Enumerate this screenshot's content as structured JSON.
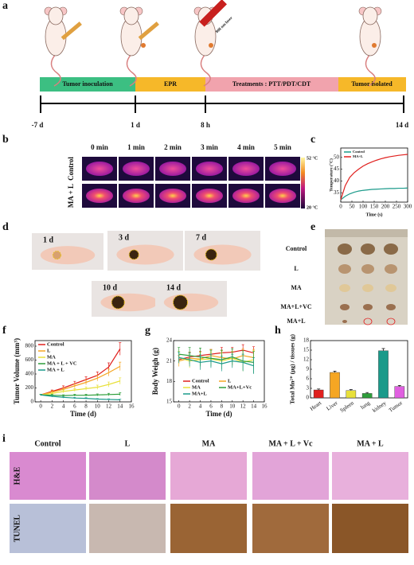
{
  "panel_labels": [
    "a",
    "b",
    "c",
    "d",
    "e",
    "f",
    "g",
    "h",
    "i"
  ],
  "timeline": {
    "phases": [
      "Tumor inoculation",
      "EPR",
      "Treatments : PTT/PDT/CDT",
      "Tumor isolated"
    ],
    "times": [
      "-7 d",
      "1 d",
      "8 h",
      "14 d"
    ],
    "laser_label": "808 nm laser"
  },
  "thermal": {
    "times": [
      "0 min",
      "1 min",
      "2 min",
      "3 min",
      "4 min",
      "5 min"
    ],
    "rows": [
      "Control",
      "MA + L"
    ],
    "scale_max": "52 °C",
    "scale_min": "20 °C"
  },
  "mice_photos": {
    "days": [
      "1 d",
      "3 d",
      "7 d",
      "10 d",
      "14 d"
    ]
  },
  "tumor_photos": {
    "groups": [
      "Control",
      "L",
      "MA",
      "MA+L+VC",
      "MA+L"
    ]
  },
  "histology": {
    "groups": [
      "Control",
      "L",
      "MA",
      "MA + L + Vc",
      "MA + L"
    ],
    "stains": [
      "H&E",
      "TUNEL"
    ]
  },
  "chart_data": [
    {
      "type": "line",
      "x_label": "Time (s)",
      "y_label": "Temperature (°C)",
      "x": [
        0,
        20,
        40,
        60,
        80,
        100,
        120,
        140,
        160,
        180,
        200,
        220,
        240,
        260,
        280,
        300
      ],
      "series": [
        {
          "name": "Control",
          "color": "#1a9a8a",
          "values": [
            32,
            33.5,
            34.5,
            35.2,
            35.7,
            36,
            36.2,
            36.4,
            36.5,
            36.6,
            36.7,
            36.8,
            36.8,
            36.9,
            36.9,
            37
          ]
        },
        {
          "name": "MA+L",
          "color": "#e0201e",
          "values": [
            32,
            38,
            41.5,
            43.5,
            45,
            46.3,
            47.3,
            48.1,
            48.8,
            49.4,
            49.9,
            50.3,
            50.6,
            50.9,
            51.1,
            51.3
          ]
        }
      ],
      "xlim": [
        0,
        300
      ],
      "xticks": [
        0,
        50,
        100,
        150,
        200,
        250,
        300
      ],
      "ylim": [
        31,
        54
      ],
      "yticks": [
        35,
        40,
        45,
        50
      ],
      "legend": "upper left",
      "legend_columns": 1
    },
    {
      "type": "line",
      "x_label": "Time (d)",
      "y_label": "Tumor Volume (mm³)",
      "x": [
        0,
        2,
        4,
        6,
        8,
        10,
        12,
        14
      ],
      "series": [
        {
          "name": "Control",
          "color": "#e0201e",
          "values": [
            100,
            150,
            200,
            260,
            320,
            380,
            500,
            760
          ],
          "errors": [
            10,
            20,
            30,
            35,
            40,
            50,
            60,
            90
          ]
        },
        {
          "name": "L",
          "color": "#f5a623",
          "values": [
            100,
            140,
            180,
            230,
            280,
            340,
            420,
            510
          ],
          "errors": [
            10,
            20,
            25,
            30,
            35,
            40,
            50,
            60
          ]
        },
        {
          "name": "MA",
          "color": "#e8e03a",
          "values": [
            100,
            120,
            150,
            170,
            190,
            210,
            250,
            300
          ],
          "errors": [
            10,
            15,
            20,
            20,
            25,
            30,
            35,
            45
          ]
        },
        {
          "name": "MA + L + VC",
          "color": "#2e9e3a",
          "values": [
            100,
            95,
            90,
            95,
            95,
            100,
            105,
            110
          ],
          "errors": [
            10,
            12,
            12,
            15,
            15,
            15,
            18,
            20
          ]
        },
        {
          "name": "MA + L",
          "color": "#1a9a8a",
          "values": [
            100,
            80,
            65,
            55,
            50,
            40,
            35,
            30
          ],
          "errors": [
            10,
            10,
            10,
            10,
            10,
            8,
            8,
            8
          ]
        }
      ],
      "xlim": [
        -1,
        16
      ],
      "xticks": [
        0,
        2,
        4,
        6,
        8,
        10,
        12,
        14,
        16
      ],
      "ylim": [
        0,
        880
      ],
      "yticks": [
        0,
        200,
        400,
        600,
        800
      ],
      "legend": "upper left",
      "legend_columns": 1
    },
    {
      "type": "line",
      "x_label": "Time (d)",
      "y_label": "Body Weigh (g)",
      "x": [
        0,
        2,
        4,
        6,
        8,
        10,
        12,
        14
      ],
      "series": [
        {
          "name": "Control",
          "color": "#e0201e",
          "values": [
            21.2,
            21.6,
            21.8,
            22,
            22.2,
            22.3,
            22.6,
            22.2
          ],
          "errors": [
            0.6,
            0.7,
            0.6,
            0.7,
            0.8,
            0.7,
            0.8,
            0.9
          ]
        },
        {
          "name": "L",
          "color": "#f5a623",
          "values": [
            21,
            21.4,
            21.3,
            21.8,
            21.5,
            21.3,
            21.8,
            21.5
          ],
          "errors": [
            0.8,
            0.9,
            1,
            0.9,
            1,
            1.1,
            1,
            1.2
          ]
        },
        {
          "name": "MA",
          "color": "#e8e03a",
          "values": [
            21.5,
            21,
            21.2,
            21.3,
            21,
            21.4,
            20.8,
            21.2
          ],
          "errors": [
            0.9,
            1,
            1.1,
            1,
            1.2,
            1,
            1.2,
            1.3
          ]
        },
        {
          "name": "MA+L+Vc",
          "color": "#2e9e3a",
          "values": [
            22,
            21.8,
            21.6,
            21.4,
            21.2,
            21.6,
            21,
            20.8
          ],
          "errors": [
            1,
            1.2,
            1.3,
            1.2,
            1.4,
            1.2,
            1.5,
            1.6
          ]
        },
        {
          "name": "MA+L",
          "color": "#1a9a8a",
          "values": [
            21.5,
            21.2,
            20.8,
            21,
            20.6,
            21,
            20.8,
            20.3
          ],
          "errors": [
            0.8,
            1,
            1.1,
            1,
            1.1,
            1,
            1.2,
            1.2
          ]
        }
      ],
      "xlim": [
        -1,
        16
      ],
      "xticks": [
        0,
        2,
        4,
        6,
        8,
        10,
        12,
        14,
        16
      ],
      "ylim": [
        15,
        24
      ],
      "yticks": [
        15,
        18,
        21,
        24
      ],
      "legend": "lower center",
      "legend_columns": 2
    },
    {
      "type": "bar",
      "y_label": "Total Mn²⁺ (μg) / tissues (g)",
      "categories": [
        "Heart",
        "Liver",
        "Spleen",
        "lung",
        "kidney",
        "Tumor"
      ],
      "values": [
        2.5,
        8,
        2.3,
        1.4,
        14.8,
        3.6
      ],
      "errors": [
        0.3,
        0.4,
        0.3,
        0.3,
        0.7,
        0.3
      ],
      "colors": [
        "#e0201e",
        "#f5a623",
        "#e8e03a",
        "#2e9e3a",
        "#1a9a8a",
        "#e060e0"
      ],
      "ylim": [
        0,
        18
      ],
      "yticks": [
        0,
        3,
        6,
        9,
        12,
        15,
        18
      ]
    }
  ]
}
